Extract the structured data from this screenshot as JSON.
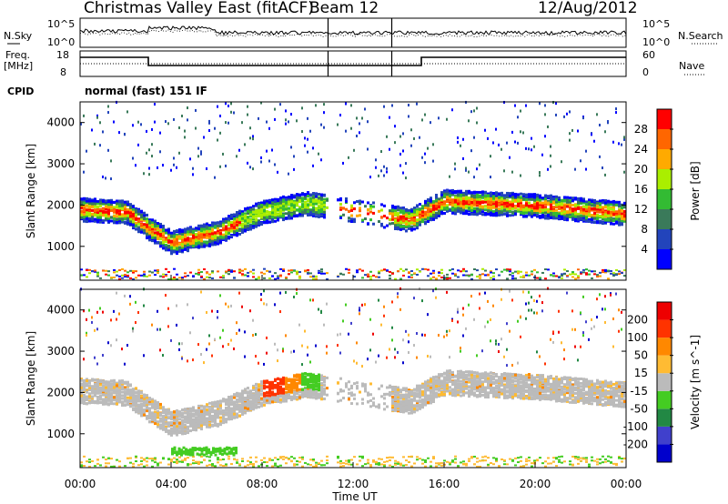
{
  "header": {
    "station": "Christmas Valley East (fitACF)",
    "beam": "Beam 12",
    "date": "12/Aug/2012",
    "cpid_label": "CPID",
    "cpid_value": "normal (fast) 151 IF"
  },
  "noise_panel": {
    "left_label": "N.Sky",
    "left_ticks": [
      "10^5",
      "10^0"
    ],
    "right_ticks": [
      "10^5",
      "10^0"
    ],
    "right_label": "N.Search"
  },
  "freq_panel": {
    "left_label_1": "Freq.",
    "left_label_2": "[MHz]",
    "left_ticks": [
      "18",
      "8"
    ],
    "right_ticks": [
      "60",
      "0"
    ],
    "right_label": "Nave"
  },
  "chart_data": [
    {
      "type": "heatmap",
      "name": "power",
      "ylabel": "Slant Range [km]",
      "ylim": [
        180,
        4500
      ],
      "yticks": [
        1000,
        2000,
        3000,
        4000
      ],
      "colorbar": {
        "label": "Power [dB]",
        "ticks": [
          "4",
          "8",
          "12",
          "16",
          "20",
          "24",
          "28"
        ]
      },
      "echo_bands": [
        {
          "t": 0,
          "range": 1850
        },
        {
          "t": 2,
          "range": 1800
        },
        {
          "t": 3,
          "range": 1400
        },
        {
          "t": 4,
          "range": 1050
        },
        {
          "t": 6,
          "range": 1300
        },
        {
          "t": 8,
          "range": 1800
        },
        {
          "t": 10,
          "range": 2000
        },
        {
          "t": 14.5,
          "range": 1600
        },
        {
          "t": 16,
          "range": 2050
        },
        {
          "t": 20,
          "range": 1950
        },
        {
          "t": 24,
          "range": 1750
        }
      ]
    },
    {
      "type": "heatmap",
      "name": "velocity",
      "ylabel": "Slant Range [km]",
      "ylim": [
        180,
        4500
      ],
      "yticks": [
        1000,
        2000,
        3000,
        4000
      ],
      "colorbar": {
        "label": "Velocity [m s^-1]",
        "ticks": [
          "200",
          "100",
          "50",
          "15",
          "-15",
          "-50",
          "-100",
          "-200"
        ]
      }
    }
  ],
  "xaxis": {
    "label": "Time UT",
    "ticks": [
      "00:00",
      "04:00",
      "08:00",
      "12:00",
      "16:00",
      "20:00",
      "00:00"
    ]
  },
  "colors": {
    "power_scale": [
      "#0000ff",
      "#2244bb",
      "#3a7a5a",
      "#33bb33",
      "#aaee00",
      "#ffaa00",
      "#ff6600",
      "#ff0000"
    ],
    "velocity_scale": [
      "#0000cc",
      "#4040cc",
      "#228844",
      "#44cc22",
      "#bbbbbb",
      "#ffbb33",
      "#ff8800",
      "#ff3300",
      "#ee0000"
    ]
  }
}
